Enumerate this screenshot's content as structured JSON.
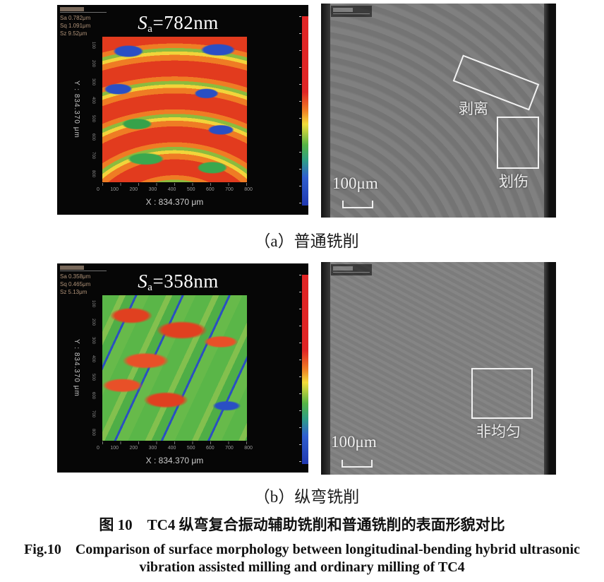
{
  "figure": {
    "panel_a": {
      "topo": {
        "meta": [
          "Sa 0.782μm",
          "Sq 1.091μm",
          "Sz 9.52μm"
        ],
        "sa_symbol": "S",
        "sa_subscript": "a",
        "sa_value": "=782nm",
        "x_label": "X : 834.370 μm",
        "y_label": "Y : 834.370 μm",
        "x_ticks": [
          "0",
          "100",
          "200",
          "300",
          "400",
          "500",
          "600",
          "700",
          "800"
        ],
        "y_ticks": [
          "100",
          "200",
          "300",
          "400",
          "500",
          "600",
          "700",
          "800"
        ]
      },
      "sem": {
        "annotation_peel": "剥离",
        "annotation_scratch": "划伤",
        "scale_label": "100μm"
      },
      "caption": "（a）普通铣削"
    },
    "panel_b": {
      "topo": {
        "meta": [
          "Sa 0.358μm",
          "Sq 0.465μm",
          "Sz 5.13μm"
        ],
        "sa_symbol": "S",
        "sa_subscript": "a",
        "sa_value": "=358nm",
        "x_label": "X : 834.370 μm",
        "y_label": "Y : 834.370 μm",
        "x_ticks": [
          "0",
          "100",
          "200",
          "300",
          "400",
          "500",
          "600",
          "700",
          "800"
        ],
        "y_ticks": [
          "100",
          "200",
          "300",
          "400",
          "500",
          "600",
          "700",
          "800"
        ]
      },
      "sem": {
        "annotation_nonuniform": "非均匀",
        "scale_label": "100μm"
      },
      "caption": "（b）纵弯铣削"
    },
    "caption_zh": "图 10　TC4 纵弯复合振动辅助铣削和普通铣削的表面形貌对比",
    "caption_en_line1": "Fig.10　Comparison of surface morphology between longitudinal-bending hybrid ultrasonic",
    "caption_en_line2": "vibration assisted milling and ordinary milling of TC4"
  },
  "colors": {
    "heat_red": "#e23b1e",
    "heat_orange": "#ef7c24",
    "heat_yellow": "#f2d43a",
    "heat_green": "#55b545",
    "heat_blue": "#2a4fc4",
    "sem_gray": "#7b7b7b",
    "panel_bg": "#060606",
    "annotation_white": "#f2f2f2"
  }
}
